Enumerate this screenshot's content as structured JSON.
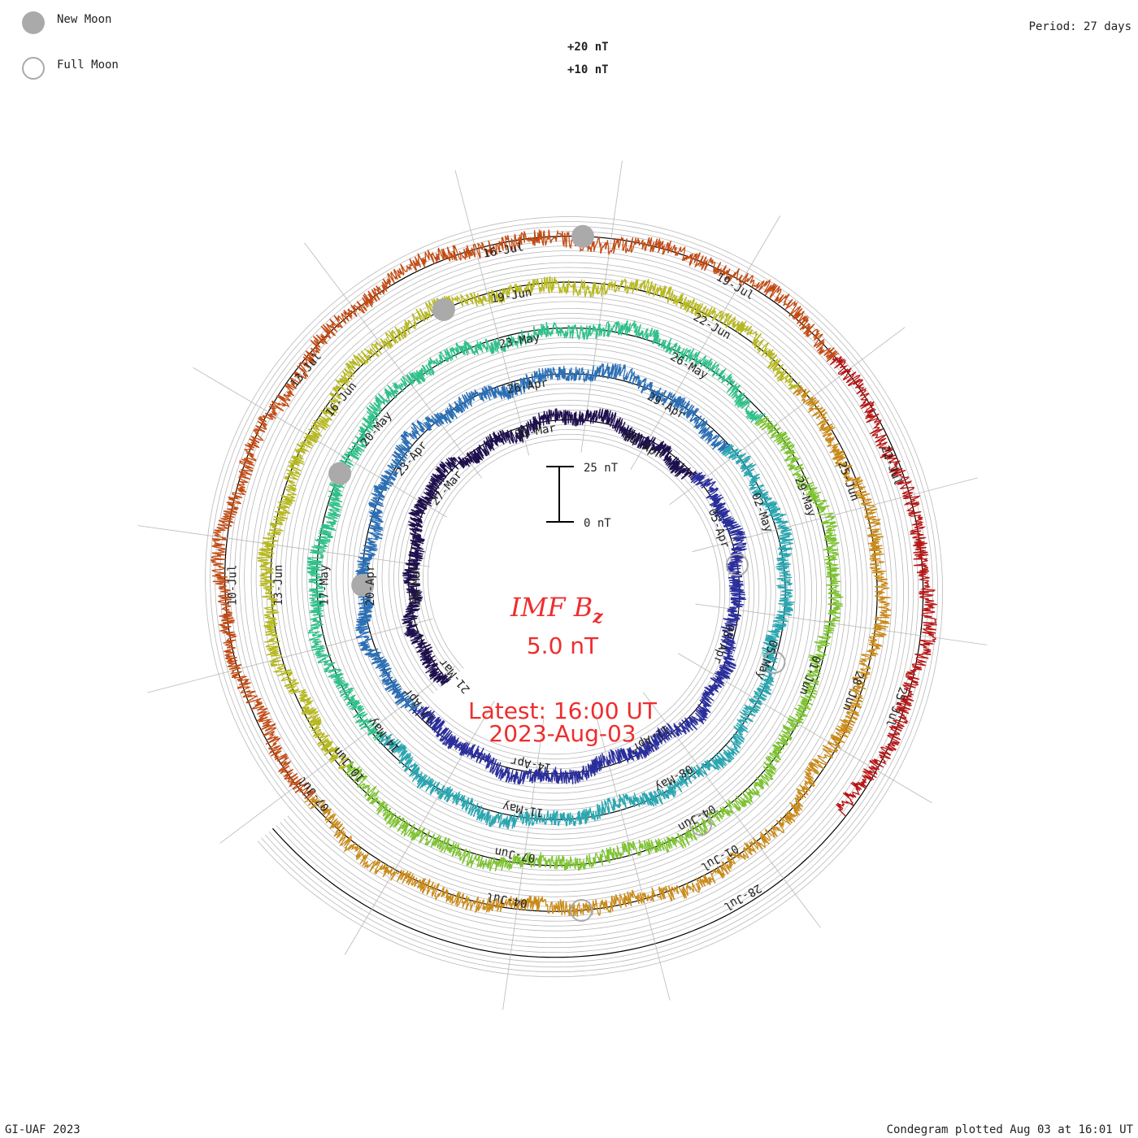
{
  "corner": {
    "new_moon": "New Moon",
    "full_moon": "Full Moon",
    "period": "Period: 27 days",
    "credit": "GI-UAF 2023",
    "plotted": "Condegram plotted Aug 03 at 16:01 UT"
  },
  "scale": {
    "plus20": "+20 nT",
    "plus10": "+10 nT",
    "bar_top": "25 nT",
    "bar_bottom": "0 nT"
  },
  "center": {
    "title_main": "IMF B",
    "title_sub": "z",
    "value": "5.0 nT",
    "latest": "Latest: 16:00 UT",
    "date": "2023-Aug-03"
  },
  "colors": {
    "accent": "#ee2d2d",
    "rings": [
      "#1e0f4d",
      "#2a2e9c",
      "#2b6fb5",
      "#2aa6b0",
      "#30c08a",
      "#7dc331",
      "#b6b820",
      "#c98a18",
      "#c24a12",
      "#b81515"
    ],
    "grid": "#b9b9b9",
    "moon": "#aaaaaa"
  },
  "chart_data": {
    "type": "condegram",
    "title": "IMF Bz",
    "current_value": 5.0,
    "unit": "nT",
    "period_days": 27,
    "series": [
      {
        "start": "21-Mar",
        "end": "17-Apr",
        "date_labels": [
          "21-Mar",
          "24-Mar",
          "27-Mar",
          "30-Mar",
          "02-Apr",
          "05-Apr",
          "08-Apr",
          "11-Apr",
          "14-Apr"
        ]
      },
      {
        "start": "17-Apr",
        "end": "14-May",
        "date_labels": [
          "17-Apr",
          "20-Apr",
          "23-Apr",
          "26-Apr",
          "29-Apr",
          "02-May",
          "05-May",
          "08-May",
          "11-May"
        ]
      },
      {
        "start": "14-May",
        "end": "10-Jun",
        "date_labels": [
          "14-May",
          "17-May",
          "20-May",
          "23-May",
          "26-May",
          "29-May",
          "01-Jun",
          "04-Jun",
          "07-Jun"
        ]
      },
      {
        "start": "10-Jun",
        "end": "07-Jul",
        "date_labels": [
          "10-Jun",
          "13-Jun",
          "16-Jun",
          "19-Jun",
          "22-Jun",
          "25-Jun",
          "28-Jun",
          "01-Jul",
          "04-Jul"
        ]
      },
      {
        "start": "07-Jul",
        "end": "03-Aug",
        "date_labels": [
          "07-Jul",
          "10-Jul",
          "13-Jul",
          "16-Jul",
          "19-Jul",
          "22-Jul",
          "25-Jul",
          "28-Jul"
        ]
      }
    ],
    "new_moons": [
      "20-Apr",
      "19-May",
      "18-Jun",
      "17-Jul"
    ],
    "full_moons": [
      "06-Apr",
      "05-May",
      "04-Jun",
      "03-Jul"
    ]
  }
}
